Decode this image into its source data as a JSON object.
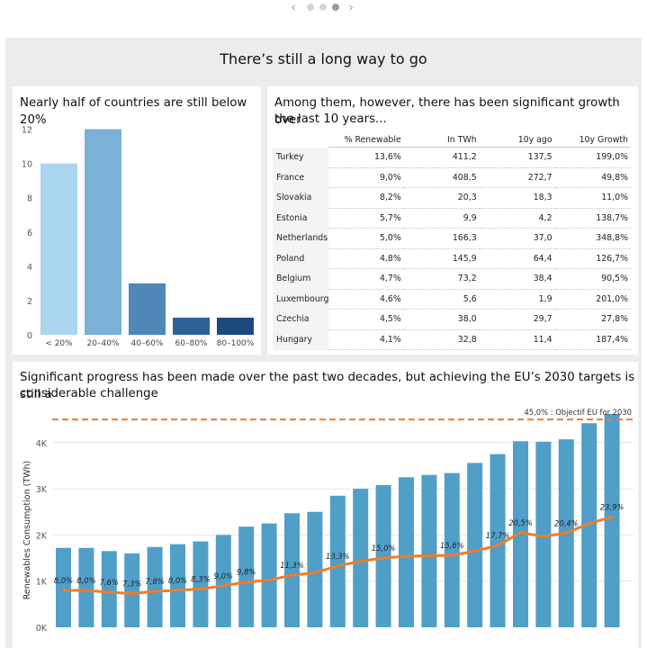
{
  "pager": {
    "prev_icon": "chevron-left-icon",
    "next_icon": "chevron-right-icon",
    "pages": 3,
    "active_page": 3
  },
  "main_title": "There’s still a long way to go",
  "panels": {
    "histogram": {
      "title": "Nearly half of countries are still below 20%"
    },
    "table": {
      "title_line1": "Among them, however, there has been significant growth over",
      "title_line2": "the last 10 years..."
    },
    "progress": {
      "title_line1": "Significant progress has been made over the past two decades, but achieving the EU’s 2030 targets is still a",
      "title_line2": "considerable challenge"
    }
  },
  "colors": {
    "background": "#ececec",
    "bar_blue": "#4f9fc8",
    "line_orange": "#ef7d2d"
  },
  "chart_data": [
    {
      "type": "bar",
      "title": "Nearly half of countries are still below 20%",
      "categories": [
        "< 20%",
        "20–40%",
        "40–60%",
        "60–80%",
        "80–100%"
      ],
      "values": [
        10,
        12,
        3,
        1,
        1
      ],
      "colors": [
        "#a9d6ee",
        "#7ab2d6",
        "#4e88b8",
        "#2e6197",
        "#1c4a7e"
      ],
      "yticks": [
        0,
        2,
        4,
        6,
        8,
        10,
        12
      ],
      "ylim": [
        0,
        12.5
      ],
      "grid": false
    },
    {
      "type": "table",
      "columns": [
        "% Renewable",
        "In TWh",
        "10y ago",
        "10y Growth"
      ],
      "rows": [
        {
          "country": "Turkey",
          "pct": "13,6%",
          "twh": "411,2",
          "ago": "137,5",
          "growth": "199,0%"
        },
        {
          "country": "France",
          "pct": "9,0%",
          "twh": "408,5",
          "ago": "272,7",
          "growth": "49,8%"
        },
        {
          "country": "Slovakia",
          "pct": "8,2%",
          "twh": "20,3",
          "ago": "18,3",
          "growth": "11,0%"
        },
        {
          "country": "Estonia",
          "pct": "5,7%",
          "twh": "9,9",
          "ago": "4,2",
          "growth": "138,7%"
        },
        {
          "country": "Netherlands",
          "pct": "5,0%",
          "twh": "166,3",
          "ago": "37,0",
          "growth": "348,8%"
        },
        {
          "country": "Poland",
          "pct": "4,8%",
          "twh": "145,9",
          "ago": "64,4",
          "growth": "126,7%"
        },
        {
          "country": "Belgium",
          "pct": "4,7%",
          "twh": "73,2",
          "ago": "38,4",
          "growth": "90,5%"
        },
        {
          "country": "Luxembourg",
          "pct": "4,6%",
          "twh": "5,6",
          "ago": "1,9",
          "growth": "201,0%"
        },
        {
          "country": "Czechia",
          "pct": "4,5%",
          "twh": "38,0",
          "ago": "29,7",
          "growth": "27,8%"
        },
        {
          "country": "Hungary",
          "pct": "4,1%",
          "twh": "32,8",
          "ago": "11,4",
          "growth": "187,4%"
        }
      ]
    },
    {
      "type": "bar",
      "title": "Significant progress has been made over the past two decades, but achieving the EU’s 2030 targets is still a considerable challenge",
      "ylabel": "Renewables Consumption (TWh)",
      "ytick_labels": [
        "0K",
        "1K",
        "2K",
        "3K",
        "4K"
      ],
      "yticks": [
        0,
        1000,
        2000,
        3000,
        4000
      ],
      "ylim": [
        0,
        4600
      ],
      "values": [
        1720,
        1720,
        1650,
        1600,
        1740,
        1800,
        1860,
        2000,
        2180,
        2250,
        2470,
        2500,
        2850,
        3000,
        3080,
        3250,
        3300,
        3340,
        3560,
        3750,
        4030,
        4020,
        4070,
        4420,
        4620
      ],
      "share_series": {
        "values": [
          8.0,
          8.0,
          7.6,
          7.3,
          7.8,
          8.0,
          8.3,
          9.0,
          9.8,
          10.2,
          11.3,
          11.8,
          13.3,
          14.3,
          15.0,
          15.4,
          15.5,
          15.6,
          16.5,
          17.7,
          20.5,
          19.7,
          20.4,
          22.5,
          23.9
        ],
        "labels": [
          "8,0%",
          "8,0%",
          "7,6%",
          "7,3%",
          "7,8%",
          "8,0%",
          "8,3%",
          "9,0%",
          "9,8%",
          "",
          "11,3%",
          "",
          "13,3%",
          "",
          "15,0%",
          "",
          "",
          "15,6%",
          "",
          "17,7%",
          "20,5%",
          "",
          "20,4%",
          "",
          "23,9%"
        ],
        "ylim": [
          0,
          46
        ]
      },
      "target": {
        "value": 45.0,
        "label": "45,0% : Objectif EU for 2030"
      },
      "grid": true
    }
  ]
}
